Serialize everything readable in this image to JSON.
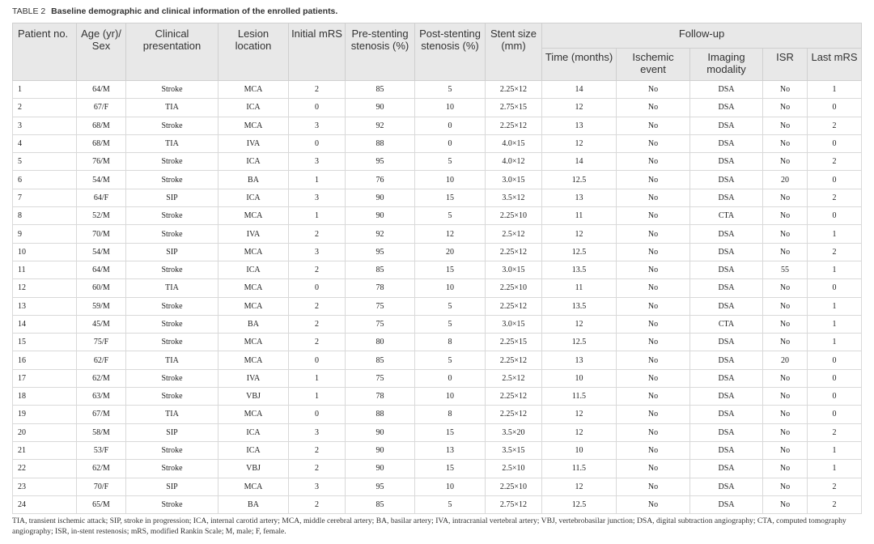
{
  "caption": {
    "label": "TABLE 2",
    "title": "Baseline demographic and clinical information of the enrolled patients."
  },
  "header": {
    "patient_no": "Patient no.",
    "age_sex": "Age (yr)/ Sex",
    "clinical": "Clinical presentation",
    "lesion": "Lesion location",
    "initial_mrs": "Initial mRS",
    "pre": "Pre-stenting stenosis (%)",
    "post": "Post-stenting stenosis (%)",
    "stent": "Stent size (mm)",
    "followup": "Follow-up",
    "time": "Time (months)",
    "ischemic": "Ischemic event",
    "imaging": "Imaging modality",
    "isr": "ISR",
    "last_mrs": "Last mRS"
  },
  "rows": [
    [
      "1",
      "64/M",
      "Stroke",
      "MCA",
      "2",
      "85",
      "5",
      "2.25×12",
      "14",
      "No",
      "DSA",
      "No",
      "1"
    ],
    [
      "2",
      "67/F",
      "TIA",
      "ICA",
      "0",
      "90",
      "10",
      "2.75×15",
      "12",
      "No",
      "DSA",
      "No",
      "0"
    ],
    [
      "3",
      "68/M",
      "Stroke",
      "MCA",
      "3",
      "92",
      "0",
      "2.25×12",
      "13",
      "No",
      "DSA",
      "No",
      "2"
    ],
    [
      "4",
      "68/M",
      "TIA",
      "IVA",
      "0",
      "88",
      "0",
      "4.0×15",
      "12",
      "No",
      "DSA",
      "No",
      "0"
    ],
    [
      "5",
      "76/M",
      "Stroke",
      "ICA",
      "3",
      "95",
      "5",
      "4.0×12",
      "14",
      "No",
      "DSA",
      "No",
      "2"
    ],
    [
      "6",
      "54/M",
      "Stroke",
      "BA",
      "1",
      "76",
      "10",
      "3.0×15",
      "12.5",
      "No",
      "DSA",
      "20",
      "0"
    ],
    [
      "7",
      "64/F",
      "SIP",
      "ICA",
      "3",
      "90",
      "15",
      "3.5×12",
      "13",
      "No",
      "DSA",
      "No",
      "2"
    ],
    [
      "8",
      "52/M",
      "Stroke",
      "MCA",
      "1",
      "90",
      "5",
      "2.25×10",
      "11",
      "No",
      "CTA",
      "No",
      "0"
    ],
    [
      "9",
      "70/M",
      "Stroke",
      "IVA",
      "2",
      "92",
      "12",
      "2.5×12",
      "12",
      "No",
      "DSA",
      "No",
      "1"
    ],
    [
      "10",
      "54/M",
      "SIP",
      "MCA",
      "3",
      "95",
      "20",
      "2.25×12",
      "12.5",
      "No",
      "DSA",
      "No",
      "2"
    ],
    [
      "11",
      "64/M",
      "Stroke",
      "ICA",
      "2",
      "85",
      "15",
      "3.0×15",
      "13.5",
      "No",
      "DSA",
      "55",
      "1"
    ],
    [
      "12",
      "60/M",
      "TIA",
      "MCA",
      "0",
      "78",
      "10",
      "2.25×10",
      "11",
      "No",
      "DSA",
      "No",
      "0"
    ],
    [
      "13",
      "59/M",
      "Stroke",
      "MCA",
      "2",
      "75",
      "5",
      "2.25×12",
      "13.5",
      "No",
      "DSA",
      "No",
      "1"
    ],
    [
      "14",
      "45/M",
      "Stroke",
      "BA",
      "2",
      "75",
      "5",
      "3.0×15",
      "12",
      "No",
      "CTA",
      "No",
      "1"
    ],
    [
      "15",
      "75/F",
      "Stroke",
      "MCA",
      "2",
      "80",
      "8",
      "2.25×15",
      "12.5",
      "No",
      "DSA",
      "No",
      "1"
    ],
    [
      "16",
      "62/F",
      "TIA",
      "MCA",
      "0",
      "85",
      "5",
      "2.25×12",
      "13",
      "No",
      "DSA",
      "20",
      "0"
    ],
    [
      "17",
      "62/M",
      "Stroke",
      "IVA",
      "1",
      "75",
      "0",
      "2.5×12",
      "10",
      "No",
      "DSA",
      "No",
      "0"
    ],
    [
      "18",
      "63/M",
      "Stroke",
      "VBJ",
      "1",
      "78",
      "10",
      "2.25×12",
      "11.5",
      "No",
      "DSA",
      "No",
      "0"
    ],
    [
      "19",
      "67/M",
      "TIA",
      "MCA",
      "0",
      "88",
      "8",
      "2.25×12",
      "12",
      "No",
      "DSA",
      "No",
      "0"
    ],
    [
      "20",
      "58/M",
      "SIP",
      "ICA",
      "3",
      "90",
      "15",
      "3.5×20",
      "12",
      "No",
      "DSA",
      "No",
      "2"
    ],
    [
      "21",
      "53/F",
      "Stroke",
      "ICA",
      "2",
      "90",
      "13",
      "3.5×15",
      "10",
      "No",
      "DSA",
      "No",
      "1"
    ],
    [
      "22",
      "62/M",
      "Stroke",
      "VBJ",
      "2",
      "90",
      "15",
      "2.5×10",
      "11.5",
      "No",
      "DSA",
      "No",
      "1"
    ],
    [
      "23",
      "70/F",
      "SIP",
      "MCA",
      "3",
      "95",
      "10",
      "2.25×10",
      "12",
      "No",
      "DSA",
      "No",
      "2"
    ],
    [
      "24",
      "65/M",
      "Stroke",
      "BA",
      "2",
      "85",
      "5",
      "2.75×12",
      "12.5",
      "No",
      "DSA",
      "No",
      "2"
    ]
  ],
  "footnote": "TIA, transient ischemic attack; SIP, stroke in progression; ICA, internal carotid artery; MCA, middle cerebral artery; BA, basilar artery; IVA, intracranial vertebral artery; VBJ, vertebrobasilar junction; DSA, digital subtraction angiography; CTA, computed tomography angiography; ISR, in-stent restenosis; mRS, modified Rankin Scale; M, male; F, female."
}
